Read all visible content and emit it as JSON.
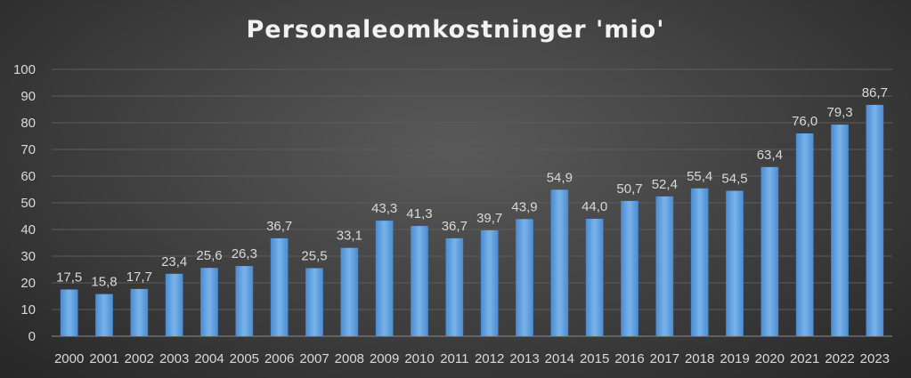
{
  "chart_data": {
    "type": "bar",
    "title": "Personaleomkostninger 'mio'",
    "xlabel": "",
    "ylabel": "",
    "categories": [
      "2000",
      "2001",
      "2002",
      "2003",
      "2004",
      "2005",
      "2006",
      "2007",
      "2008",
      "2009",
      "2010",
      "2011",
      "2012",
      "2013",
      "2014",
      "2015",
      "2016",
      "2017",
      "2018",
      "2019",
      "2020",
      "2021",
      "2022",
      "2023"
    ],
    "values": [
      17.5,
      15.8,
      17.7,
      23.4,
      25.6,
      26.3,
      36.7,
      25.5,
      33.1,
      43.3,
      41.3,
      36.7,
      39.7,
      43.9,
      54.9,
      44.0,
      50.7,
      52.4,
      55.4,
      54.5,
      63.4,
      76.0,
      79.3,
      86.7
    ],
    "value_labels": [
      "17,5",
      "15,8",
      "17,7",
      "23,4",
      "25,6",
      "26,3",
      "36,7",
      "25,5",
      "33,1",
      "43,3",
      "41,3",
      "36,7",
      "39,7",
      "43,9",
      "54,9",
      "44,0",
      "50,7",
      "52,4",
      "55,4",
      "54,5",
      "63,4",
      "76,0",
      "79,3",
      "86,7"
    ],
    "ylim": [
      0,
      100
    ],
    "yticks": [
      "0",
      "10",
      "20",
      "30",
      "40",
      "50",
      "60",
      "70",
      "80",
      "90",
      "100"
    ],
    "grid": true,
    "legend": "none",
    "bar_color": "#5b9bd5"
  }
}
